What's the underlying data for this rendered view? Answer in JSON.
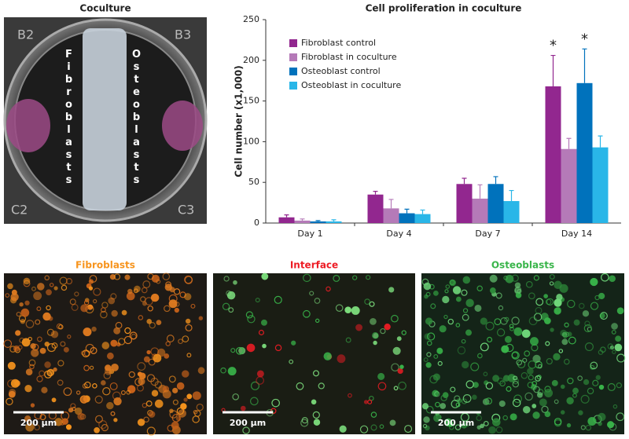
{
  "panels": {
    "coculture": {
      "title": "Coculture",
      "left_label": "Fibroblasts",
      "right_label": "Osteoblasts",
      "well_labels": [
        "B2",
        "B3",
        "C2",
        "C3"
      ]
    },
    "micrographs": [
      {
        "title": "Fibroblasts",
        "color": "#f7941d",
        "scale_bar": "200 µm"
      },
      {
        "title": "Interface",
        "color": "#ed1c24",
        "scale_bar": "200 µm"
      },
      {
        "title": "Osteoblasts",
        "color": "#39b54a",
        "scale_bar": "200 µm"
      }
    ]
  },
  "chart_data": {
    "type": "bar",
    "title": "Cell proliferation in coculture",
    "y_label": "Cell number (x1,000)",
    "categories": [
      "Day 1",
      "Day 4",
      "Day 7",
      "Day 14"
    ],
    "series": [
      {
        "name": "Fibroblast control",
        "color": "#92278f",
        "values": [
          7,
          35,
          48,
          168
        ],
        "errors": [
          3,
          4,
          7,
          38
        ],
        "annotations": [
          null,
          null,
          null,
          "*"
        ]
      },
      {
        "name": "Fibroblast in coculture",
        "color": "#b57ab8",
        "values": [
          3,
          18,
          30,
          91
        ],
        "errors": [
          2,
          11,
          17,
          13
        ],
        "annotations": [
          null,
          null,
          null,
          null
        ]
      },
      {
        "name": "Osteoblast control",
        "color": "#0072bc",
        "values": [
          2,
          12,
          48,
          172
        ],
        "errors": [
          1,
          5,
          9,
          42
        ],
        "annotations": [
          null,
          null,
          null,
          "*"
        ]
      },
      {
        "name": "Osteoblast in coculture",
        "color": "#29b6e8",
        "values": [
          2,
          11,
          27,
          93
        ],
        "errors": [
          2,
          5,
          13,
          14
        ],
        "annotations": [
          null,
          null,
          null,
          null
        ]
      }
    ],
    "ylim": [
      0,
      250
    ],
    "yticks": [
      0,
      50,
      100,
      150,
      200,
      250
    ],
    "legend": "top-left"
  }
}
